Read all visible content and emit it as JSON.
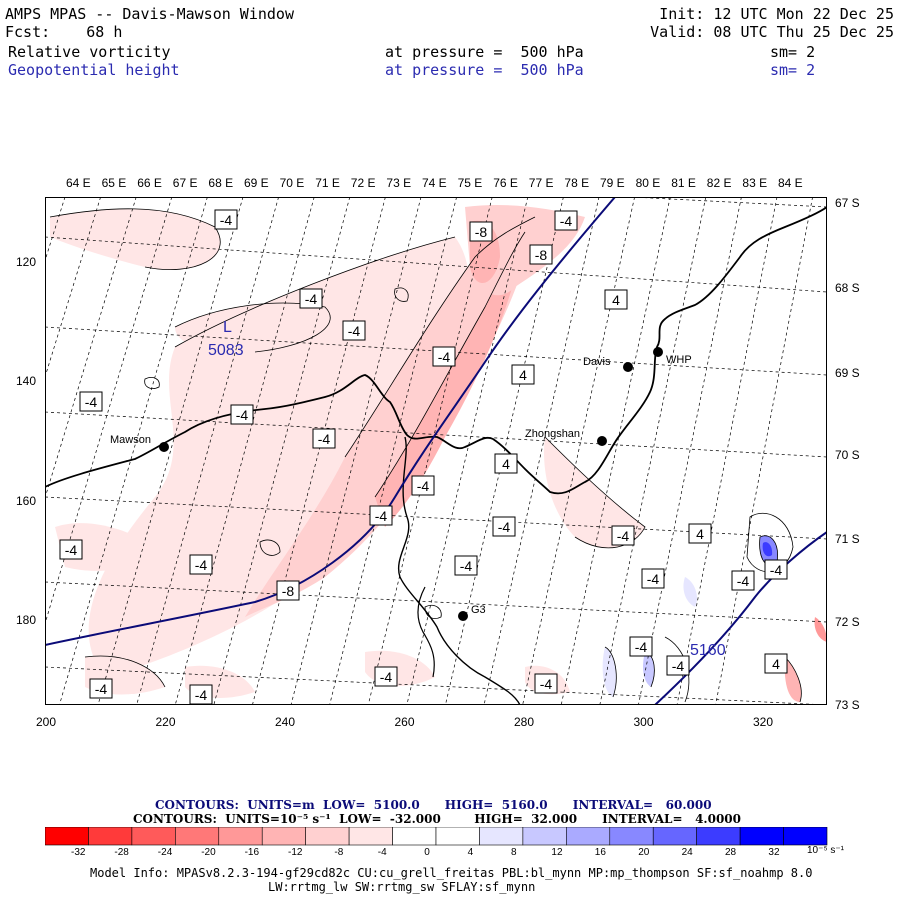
{
  "header": {
    "title": "AMPS MPAS -- Davis-Mawson Window",
    "fcst": "Fcst:    68 h",
    "init": "Init: 12 UTC Mon 22 Dec 25",
    "valid": "Valid: 08 UTC Thu 25 Dec 25",
    "field1": {
      "name": "Relative vorticity",
      "level": "at pressure =  500 hPa",
      "sm": "sm= 2"
    },
    "field2": {
      "name": "Geopotential height",
      "level": "at pressure =  500 hPa",
      "sm": "sm= 2"
    }
  },
  "map": {
    "longitude_labels": [
      "64 E",
      "65 E",
      "66 E",
      "67 E",
      "68 E",
      "69 E",
      "70 E",
      "71 E",
      "72 E",
      "73 E",
      "74 E",
      "75 E",
      "76 E",
      "77 E",
      "78 E",
      "79 E",
      "80 E",
      "81 E",
      "82 E",
      "83 E",
      "84 E"
    ],
    "latitude_labels": [
      "67 S",
      "68 S",
      "69 S",
      "70 S",
      "71 S",
      "72 S",
      "73 S"
    ],
    "x_ticks": [
      "200",
      "220",
      "240",
      "260",
      "280",
      "300",
      "320"
    ],
    "y_ticks": [
      "120",
      "140",
      "160",
      "180"
    ],
    "stations": [
      {
        "name": "Mawson"
      },
      {
        "name": "Davis"
      },
      {
        "name": "WHP"
      },
      {
        "name": "Zhongshan"
      },
      {
        "name": "G3"
      }
    ],
    "low_marker": {
      "symbol": "L",
      "value": "5083"
    },
    "height_label": "5160",
    "vorticity_labels": [
      "-4",
      "-4",
      "-4",
      "-4",
      "-4",
      "-4",
      "-4",
      "-4",
      "-4",
      "-4",
      "-4",
      "-4",
      "-4",
      "-4",
      "-4",
      "-4",
      "-4",
      "-4",
      "-4",
      "-4",
      "-8",
      "-8",
      "-8",
      "-4",
      "4",
      "4",
      "4",
      "4",
      "4",
      "-4",
      "-4",
      "-4"
    ]
  },
  "legend": {
    "contours1": "CONTOURS:  UNITS=m  LOW=  5100.0      HIGH=  5160.0      INTERVAL=   60.000",
    "contours2": "CONTOURS:  UNITS=10⁻⁵ s⁻¹  LOW=  -32.000        HIGH=  32.000      INTERVAL=   4.0000",
    "colorbar_labels": [
      "-32",
      "-28",
      "-24",
      "-20",
      "-16",
      "-12",
      "-8",
      "-4",
      "0",
      "4",
      "8",
      "12",
      "16",
      "20",
      "24",
      "28",
      "32"
    ],
    "colorbar_units": "10⁻⁵ s⁻¹",
    "colors": [
      "#ff0000",
      "#ff3a3a",
      "#ff5a5a",
      "#ff7878",
      "#ff9898",
      "#ffb4b4",
      "#ffd0d0",
      "#ffe6e6",
      "#ffffff",
      "#ffffff",
      "#e6e6ff",
      "#c8c8ff",
      "#aaaaff",
      "#8888ff",
      "#6666ff",
      "#3c3cff",
      "#0000ff",
      "#0000ff"
    ]
  },
  "footer": {
    "line1": "Model Info: MPASv8.2.3-194-gf29cd82c CU:cu_grell_freitas PBL:bl_mynn MP:mp_thompson SF:sf_noahmp 8.0",
    "line2": "LW:rrtmg_lw SW:rrtmg_sw SFLAY:sf_mynn"
  }
}
